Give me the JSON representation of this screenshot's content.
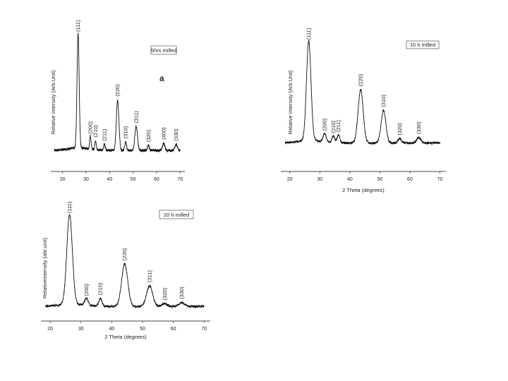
{
  "chart_data": [
    {
      "type": "line",
      "title": "5hrs milled",
      "panel_letter": "a",
      "xlabel": "",
      "ylabel": "Relative intensity (Arb.Unit)",
      "xlim": [
        15,
        72
      ],
      "ylim": [
        0,
        100
      ],
      "x_ticks": [
        20,
        30,
        40,
        50,
        60,
        70
      ],
      "x_tick_labels": [
        "20",
        "30",
        "40",
        "50",
        "60",
        "70"
      ],
      "baseline": 4,
      "peaks": [
        {
          "label": "(111)",
          "x": 26.6,
          "h": 96,
          "w": 0.45
        },
        {
          "label": "(200)",
          "x": 31.8,
          "h": 11,
          "w": 0.3
        },
        {
          "label": "(210)",
          "x": 34.0,
          "h": 8,
          "w": 0.3
        },
        {
          "label": "(211)",
          "x": 37.8,
          "h": 5,
          "w": 0.35
        },
        {
          "label": "(220)",
          "x": 43.4,
          "h": 42,
          "w": 0.55
        },
        {
          "label": "(310)",
          "x": 46.8,
          "h": 7,
          "w": 0.4
        },
        {
          "label": "(311)",
          "x": 51.3,
          "h": 20,
          "w": 0.55
        },
        {
          "label": "(320)",
          "x": 56.5,
          "h": 4,
          "w": 0.4
        },
        {
          "label": "(400)",
          "x": 63.0,
          "h": 6,
          "w": 0.5
        },
        {
          "label": "(330)",
          "x": 68.3,
          "h": 5,
          "w": 0.5
        }
      ]
    },
    {
      "type": "line",
      "title": "10 h milled",
      "xlabel": "2 Theta (degrees)",
      "ylabel": "Relative intensity (Arb.Unit)",
      "xlim": [
        17,
        72
      ],
      "ylim": [
        0,
        100
      ],
      "x_ticks": [
        20,
        30,
        40,
        50,
        60,
        70
      ],
      "x_tick_labels": [
        "20",
        "30",
        "40",
        "50",
        "60",
        "70"
      ],
      "baseline": 6,
      "peaks": [
        {
          "label": "(111)",
          "x": 26.3,
          "h": 92,
          "w": 0.75
        },
        {
          "label": "(200)",
          "x": 31.6,
          "h": 8,
          "w": 0.5
        },
        {
          "label": "(210)",
          "x": 34.5,
          "h": 6,
          "w": 0.45
        },
        {
          "label": "(211)",
          "x": 36.2,
          "h": 7,
          "w": 0.45
        },
        {
          "label": "(220)",
          "x": 43.6,
          "h": 49,
          "w": 0.85
        },
        {
          "label": "(310)",
          "x": 51.2,
          "h": 30,
          "w": 0.8
        },
        {
          "label": "(320)",
          "x": 56.6,
          "h": 4,
          "w": 0.6
        },
        {
          "label": "(330)",
          "x": 63.0,
          "h": 5,
          "w": 0.7
        }
      ]
    },
    {
      "type": "line",
      "title": "20 h milled",
      "xlabel": "2 Theta (degrees)",
      "ylabel": "Relativeintensity (abr.unit)",
      "xlim": [
        17,
        72
      ],
      "ylim": [
        0,
        100
      ],
      "x_ticks": [
        20,
        30,
        40,
        50,
        60,
        70
      ],
      "x_tick_labels": [
        "20",
        "30",
        "40",
        "50",
        "60",
        "70"
      ],
      "baseline": 4,
      "peaks": [
        {
          "label": "(111)",
          "x": 26.3,
          "h": 91,
          "w": 0.9
        },
        {
          "label": "(200)",
          "x": 31.8,
          "h": 7,
          "w": 0.6
        },
        {
          "label": "(210)",
          "x": 36.3,
          "h": 8,
          "w": 0.5
        },
        {
          "label": "(220)",
          "x": 44.2,
          "h": 43,
          "w": 1.0
        },
        {
          "label": "(311)",
          "x": 52.3,
          "h": 21,
          "w": 1.0
        },
        {
          "label": "(320)",
          "x": 57.2,
          "h": 3,
          "w": 0.8
        },
        {
          "label": "(330)",
          "x": 62.7,
          "h": 4,
          "w": 0.9
        }
      ]
    }
  ]
}
